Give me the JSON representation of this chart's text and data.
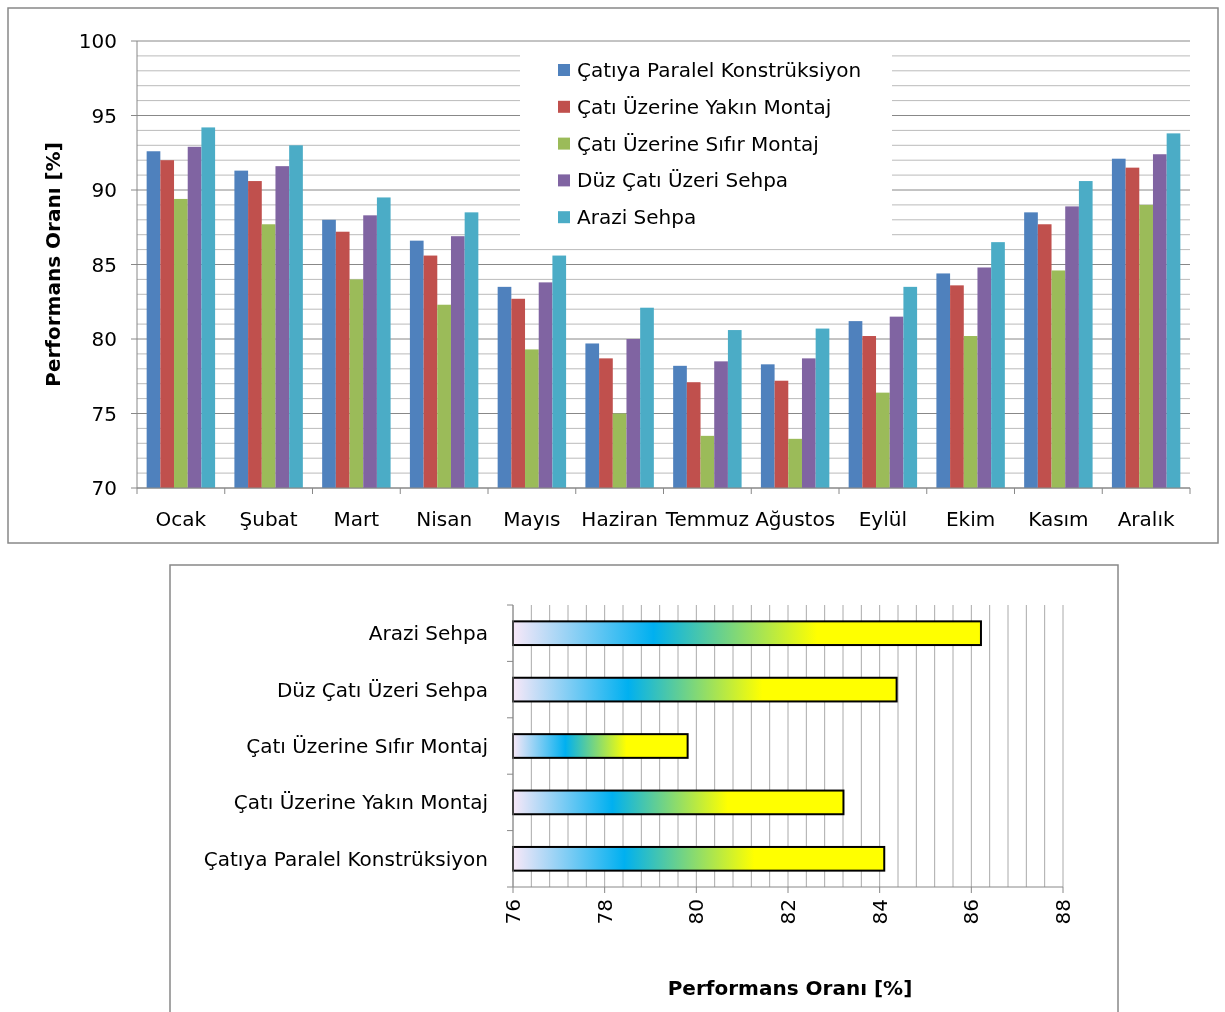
{
  "chart_data": [
    {
      "type": "bar",
      "ylabel": "Performans Oranı [%]",
      "categories": [
        "Ocak",
        "Şubat",
        "Mart",
        "Nisan",
        "Mayıs",
        "Haziran",
        "Temmuz",
        "Ağustos",
        "Eylül",
        "Ekim",
        "Kasım",
        "Aralık"
      ],
      "series": [
        {
          "name": "Çatıya Paralel Konstrüksiyon",
          "color": "#4f81bd",
          "values": [
            92.6,
            91.3,
            88.0,
            86.6,
            83.5,
            79.7,
            78.2,
            78.3,
            81.2,
            84.4,
            88.5,
            92.1
          ]
        },
        {
          "name": "Çatı Üzerine Yakın Montaj",
          "color": "#c0504d",
          "values": [
            92.0,
            90.6,
            87.2,
            85.6,
            82.7,
            78.7,
            77.1,
            77.2,
            80.2,
            83.6,
            87.7,
            91.5
          ]
        },
        {
          "name": "Çatı Üzerine Sıfır Montaj",
          "color": "#9bbb59",
          "values": [
            89.4,
            87.7,
            84.0,
            82.3,
            79.3,
            75.0,
            73.5,
            73.3,
            76.4,
            80.2,
            84.6,
            89.0
          ]
        },
        {
          "name": "Düz Çatı Üzeri Sehpa",
          "color": "#8064a2",
          "values": [
            92.9,
            91.6,
            88.3,
            86.9,
            83.8,
            80.0,
            78.5,
            78.7,
            81.5,
            84.8,
            88.9,
            92.4
          ]
        },
        {
          "name": "Arazi Sehpa",
          "color": "#4bacc6",
          "values": [
            94.2,
            93.0,
            89.5,
            88.5,
            85.6,
            82.1,
            80.6,
            80.7,
            83.5,
            86.5,
            90.6,
            93.8
          ]
        }
      ],
      "ylim": [
        70,
        100
      ],
      "yticks": [
        70,
        {
          "value": 71,
          "label": null
        },
        {
          "value": 72,
          "label": null
        },
        {
          "value": 73,
          "label": null
        },
        {
          "value": 74,
          "label": null
        },
        75,
        {
          "value": 76,
          "label": null
        },
        {
          "value": 77,
          "label": null
        },
        {
          "value": 78,
          "label": null
        },
        {
          "value": 79,
          "label": null
        },
        80,
        {
          "value": 81,
          "label": null
        },
        {
          "value": 82,
          "label": null
        },
        {
          "value": 83,
          "label": null
        },
        {
          "value": 84,
          "label": null
        },
        85,
        {
          "value": 86,
          "label": null
        },
        {
          "value": 87,
          "label": null
        },
        {
          "value": 88,
          "label": null
        },
        {
          "value": 89,
          "label": null
        },
        90,
        {
          "value": 91,
          "label": null
        },
        {
          "value": 92,
          "label": null
        },
        {
          "value": 93,
          "label": null
        },
        {
          "value": 94,
          "label": null
        },
        95,
        {
          "value": 96,
          "label": null
        },
        {
          "value": 97,
          "label": null
        },
        {
          "value": 98,
          "label": null
        },
        {
          "value": 99,
          "label": null
        },
        100
      ],
      "grid": "y",
      "legend": "top"
    },
    {
      "type": "bar",
      "orientation": "horizontal",
      "xlabel": "Performans Oranı [%]",
      "categories": [
        "Arazi Sehpa",
        "Düz Çatı Üzeri Sehpa",
        "Çatı Üzerine Sıfır Montaj",
        "Çatı Üzerine Yakın Montaj",
        "Çatıya Paralel Konstrüksiyon"
      ],
      "values": [
        86.21,
        84.37,
        79.81,
        83.21,
        84.1
      ],
      "color": "#ffff00",
      "xlim": [
        76,
        88
      ],
      "xticks": [
        76,
        {
          "value": 76.4,
          "label": null
        },
        {
          "value": 76.8,
          "label": null
        },
        {
          "value": 77.2,
          "label": null
        },
        {
          "value": 77.6,
          "label": null
        },
        78,
        {
          "value": 78.4,
          "label": null
        },
        {
          "value": 78.8,
          "label": null
        },
        {
          "value": 79.2,
          "label": null
        },
        {
          "value": 79.6,
          "label": null
        },
        80,
        {
          "value": 80.4,
          "label": null
        },
        {
          "value": 80.8,
          "label": null
        },
        {
          "value": 81.2,
          "label": null
        },
        {
          "value": 81.6,
          "label": null
        },
        82,
        {
          "value": 82.4,
          "label": null
        },
        {
          "value": 82.8,
          "label": null
        },
        {
          "value": 83.2,
          "label": null
        },
        {
          "value": 83.6,
          "label": null
        },
        84,
        {
          "value": 84.4,
          "label": null
        },
        {
          "value": 84.8,
          "label": null
        },
        {
          "value": 85.2,
          "label": null
        },
        {
          "value": 85.6,
          "label": null
        },
        86,
        {
          "value": 86.4,
          "label": null
        },
        {
          "value": 86.8,
          "label": null
        },
        {
          "value": 87.2,
          "label": null
        },
        {
          "value": 87.6,
          "label": null
        },
        88
      ],
      "grid": "x"
    }
  ]
}
